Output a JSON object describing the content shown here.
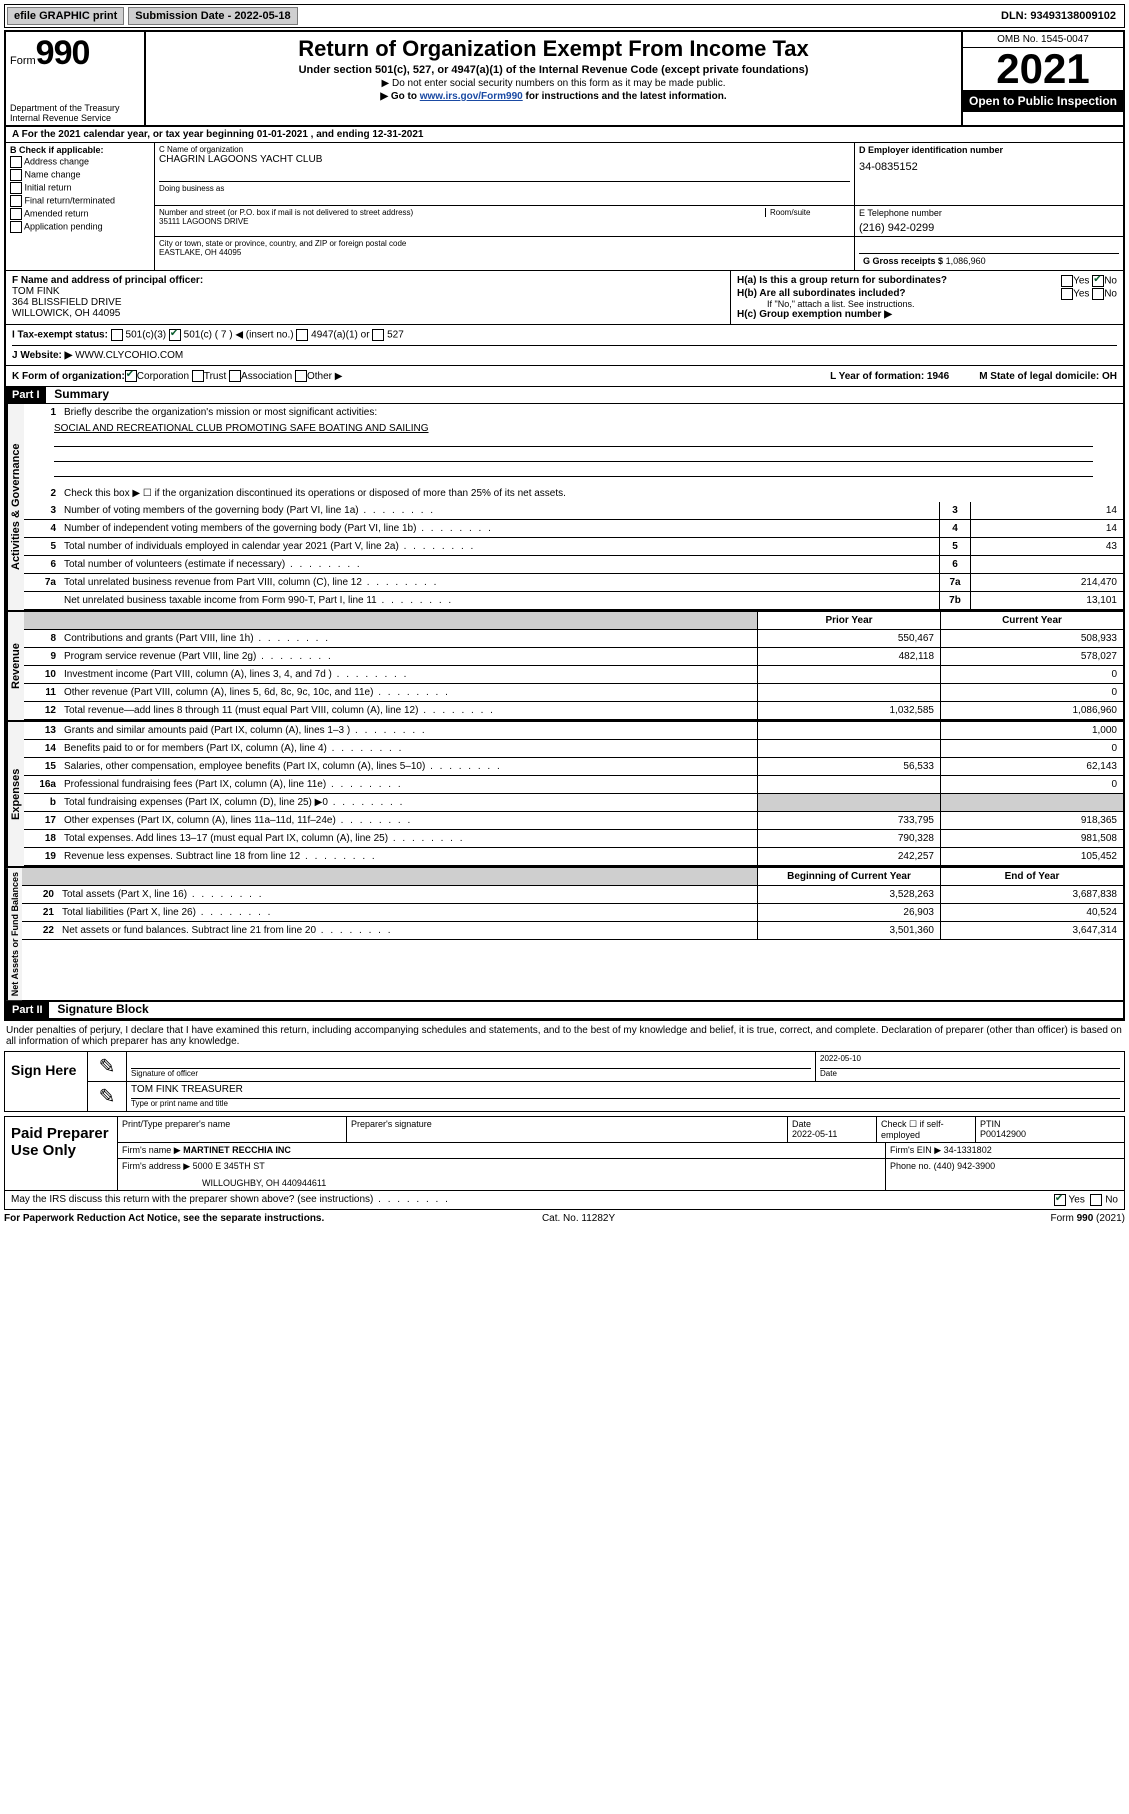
{
  "topbar": {
    "efile": "efile GRAPHIC print",
    "submission_label": "Submission Date - 2022-05-18",
    "dln": "DLN: 93493138009102"
  },
  "header": {
    "form_prefix": "Form",
    "form_number": "990",
    "dept": "Department of the Treasury",
    "irs": "Internal Revenue Service",
    "title": "Return of Organization Exempt From Income Tax",
    "subtitle": "Under section 501(c), 527, or 4947(a)(1) of the Internal Revenue Code (except private foundations)",
    "note1": "Do not enter social security numbers on this form as it may be made public.",
    "note2_pre": "Go to ",
    "note2_link": "www.irs.gov/Form990",
    "note2_post": " for instructions and the latest information.",
    "omb": "OMB No. 1545-0047",
    "year": "2021",
    "open": "Open to Public Inspection"
  },
  "A": {
    "text": "For the 2021 calendar year, or tax year beginning 01-01-2021   , and ending 12-31-2021"
  },
  "B": {
    "label": "B Check if applicable:",
    "opts": [
      "Address change",
      "Name change",
      "Initial return",
      "Final return/terminated",
      "Amended return",
      "Application pending"
    ]
  },
  "C": {
    "name_label": "C Name of organization",
    "name": "CHAGRIN LAGOONS YACHT CLUB",
    "dba_label": "Doing business as",
    "addr_label": "Number and street (or P.O. box if mail is not delivered to street address)",
    "room_label": "Room/suite",
    "addr": "35111 LAGOONS DRIVE",
    "city_label": "City or town, state or province, country, and ZIP or foreign postal code",
    "city": "EASTLAKE, OH  44095"
  },
  "D": {
    "label": "D Employer identification number",
    "val": "34-0835152"
  },
  "E": {
    "label": "E Telephone number",
    "val": "(216) 942-0299"
  },
  "G": {
    "label": "G Gross receipts $",
    "val": "1,086,960"
  },
  "F": {
    "label": "F  Name and address of principal officer:",
    "name": "TOM FINK",
    "addr1": "364 BLISSFIELD DRIVE",
    "addr2": "WILLOWICK, OH  44095"
  },
  "H": {
    "a_label": "H(a)  Is this a group return for subordinates?",
    "a_yes": "Yes",
    "a_no": "No",
    "b_label": "H(b)  Are all subordinates included?",
    "b_yes": "Yes",
    "b_no": "No",
    "b_note": "If \"No,\" attach a list. See instructions.",
    "c_label": "H(c)  Group exemption number ▶"
  },
  "I": {
    "label": "I    Tax-exempt status:",
    "c3": "501(c)(3)",
    "c_other": "501(c) ( 7 ) ◀ (insert no.)",
    "a1": "4947(a)(1) or",
    "527": "527"
  },
  "J": {
    "label": "J   Website: ▶",
    "val": "WWW.CLYCOHIO.COM"
  },
  "K": {
    "label": "K Form of organization:",
    "corp": "Corporation",
    "trust": "Trust",
    "assoc": "Association",
    "other": "Other ▶"
  },
  "L": {
    "label": "L Year of formation: 1946"
  },
  "M": {
    "label": "M State of legal domicile: OH"
  },
  "part1": {
    "hdr": "Part I",
    "title": "Summary",
    "line1_label": "Briefly describe the organization's mission or most significant activities:",
    "line1_val": "SOCIAL AND RECREATIONAL CLUB PROMOTING SAFE BOATING AND SAILING",
    "line2": "Check this box ▶ ☐  if the organization discontinued its operations or disposed of more than 25% of its net assets.",
    "sections": {
      "gov": "Activities & Governance",
      "rev": "Revenue",
      "exp": "Expenses",
      "net": "Net Assets or Fund Balances"
    },
    "rows_simple": [
      {
        "n": "3",
        "t": "Number of voting members of the governing body (Part VI, line 1a)",
        "k": "3",
        "v": "14"
      },
      {
        "n": "4",
        "t": "Number of independent voting members of the governing body (Part VI, line 1b)",
        "k": "4",
        "v": "14"
      },
      {
        "n": "5",
        "t": "Total number of individuals employed in calendar year 2021 (Part V, line 2a)",
        "k": "5",
        "v": "43"
      },
      {
        "n": "6",
        "t": "Total number of volunteers (estimate if necessary)",
        "k": "6",
        "v": ""
      },
      {
        "n": "7a",
        "t": "Total unrelated business revenue from Part VIII, column (C), line 12",
        "k": "7a",
        "v": "214,470"
      },
      {
        "n": "",
        "t": "Net unrelated business taxable income from Form 990-T, Part I, line 11",
        "k": "7b",
        "v": "13,101"
      }
    ],
    "col_prior": "Prior Year",
    "col_curr": "Current Year",
    "rows_rev": [
      {
        "n": "8",
        "t": "Contributions and grants (Part VIII, line 1h)",
        "p": "550,467",
        "c": "508,933"
      },
      {
        "n": "9",
        "t": "Program service revenue (Part VIII, line 2g)",
        "p": "482,118",
        "c": "578,027"
      },
      {
        "n": "10",
        "t": "Investment income (Part VIII, column (A), lines 3, 4, and 7d )",
        "p": "",
        "c": "0"
      },
      {
        "n": "11",
        "t": "Other revenue (Part VIII, column (A), lines 5, 6d, 8c, 9c, 10c, and 11e)",
        "p": "",
        "c": "0"
      },
      {
        "n": "12",
        "t": "Total revenue—add lines 8 through 11 (must equal Part VIII, column (A), line 12)",
        "p": "1,032,585",
        "c": "1,086,960"
      }
    ],
    "rows_exp": [
      {
        "n": "13",
        "t": "Grants and similar amounts paid (Part IX, column (A), lines 1–3 )",
        "p": "",
        "c": "1,000"
      },
      {
        "n": "14",
        "t": "Benefits paid to or for members (Part IX, column (A), line 4)",
        "p": "",
        "c": "0"
      },
      {
        "n": "15",
        "t": "Salaries, other compensation, employee benefits (Part IX, column (A), lines 5–10)",
        "p": "56,533",
        "c": "62,143"
      },
      {
        "n": "16a",
        "t": "Professional fundraising fees (Part IX, column (A), line 11e)",
        "p": "",
        "c": "0"
      },
      {
        "n": "b",
        "t": "Total fundraising expenses (Part IX, column (D), line 25) ▶0",
        "p": "__shade__",
        "c": "__shade__"
      },
      {
        "n": "17",
        "t": "Other expenses (Part IX, column (A), lines 11a–11d, 11f–24e)",
        "p": "733,795",
        "c": "918,365"
      },
      {
        "n": "18",
        "t": "Total expenses. Add lines 13–17 (must equal Part IX, column (A), line 25)",
        "p": "790,328",
        "c": "981,508"
      },
      {
        "n": "19",
        "t": "Revenue less expenses. Subtract line 18 from line 12",
        "p": "242,257",
        "c": "105,452"
      }
    ],
    "col_begin": "Beginning of Current Year",
    "col_end": "End of Year",
    "rows_net": [
      {
        "n": "20",
        "t": "Total assets (Part X, line 16)",
        "p": "3,528,263",
        "c": "3,687,838"
      },
      {
        "n": "21",
        "t": "Total liabilities (Part X, line 26)",
        "p": "26,903",
        "c": "40,524"
      },
      {
        "n": "22",
        "t": "Net assets or fund balances. Subtract line 21 from line 20",
        "p": "3,501,360",
        "c": "3,647,314"
      }
    ]
  },
  "part2": {
    "hdr": "Part II",
    "title": "Signature Block",
    "intro": "Under penalties of perjury, I declare that I have examined this return, including accompanying schedules and statements, and to the best of my knowledge and belief, it is true, correct, and complete. Declaration of preparer (other than officer) is based on all information of which preparer has any knowledge."
  },
  "sign": {
    "here": "Sign Here",
    "sig_label": "Signature of officer",
    "date": "2022-05-10",
    "date_label": "Date",
    "name": "TOM FINK TREASURER",
    "name_label": "Type or print name and title"
  },
  "prep": {
    "here": "Paid Preparer Use Only",
    "h_name": "Print/Type preparer's name",
    "h_sig": "Preparer's signature",
    "h_date": "Date",
    "date": "2022-05-11",
    "h_check": "Check ☐ if self-employed",
    "h_ptin": "PTIN",
    "ptin": "P00142900",
    "firm_name_l": "Firm's name   ▶",
    "firm_name": "MARTINET RECCHIA INC",
    "firm_ein_l": "Firm's EIN ▶",
    "firm_ein": "34-1331802",
    "firm_addr_l": "Firm's address ▶",
    "firm_addr1": "5000 E 345TH ST",
    "firm_addr2": "WILLOUGHBY, OH  440944611",
    "phone_l": "Phone no.",
    "phone": "(440) 942-3900"
  },
  "discuss": {
    "text": "May the IRS discuss this return with the preparer shown above? (see instructions)",
    "yes": "Yes",
    "no": "No"
  },
  "footer": {
    "left": "For Paperwork Reduction Act Notice, see the separate instructions.",
    "mid": "Cat. No. 11282Y",
    "right": "Form 990 (2021)"
  }
}
